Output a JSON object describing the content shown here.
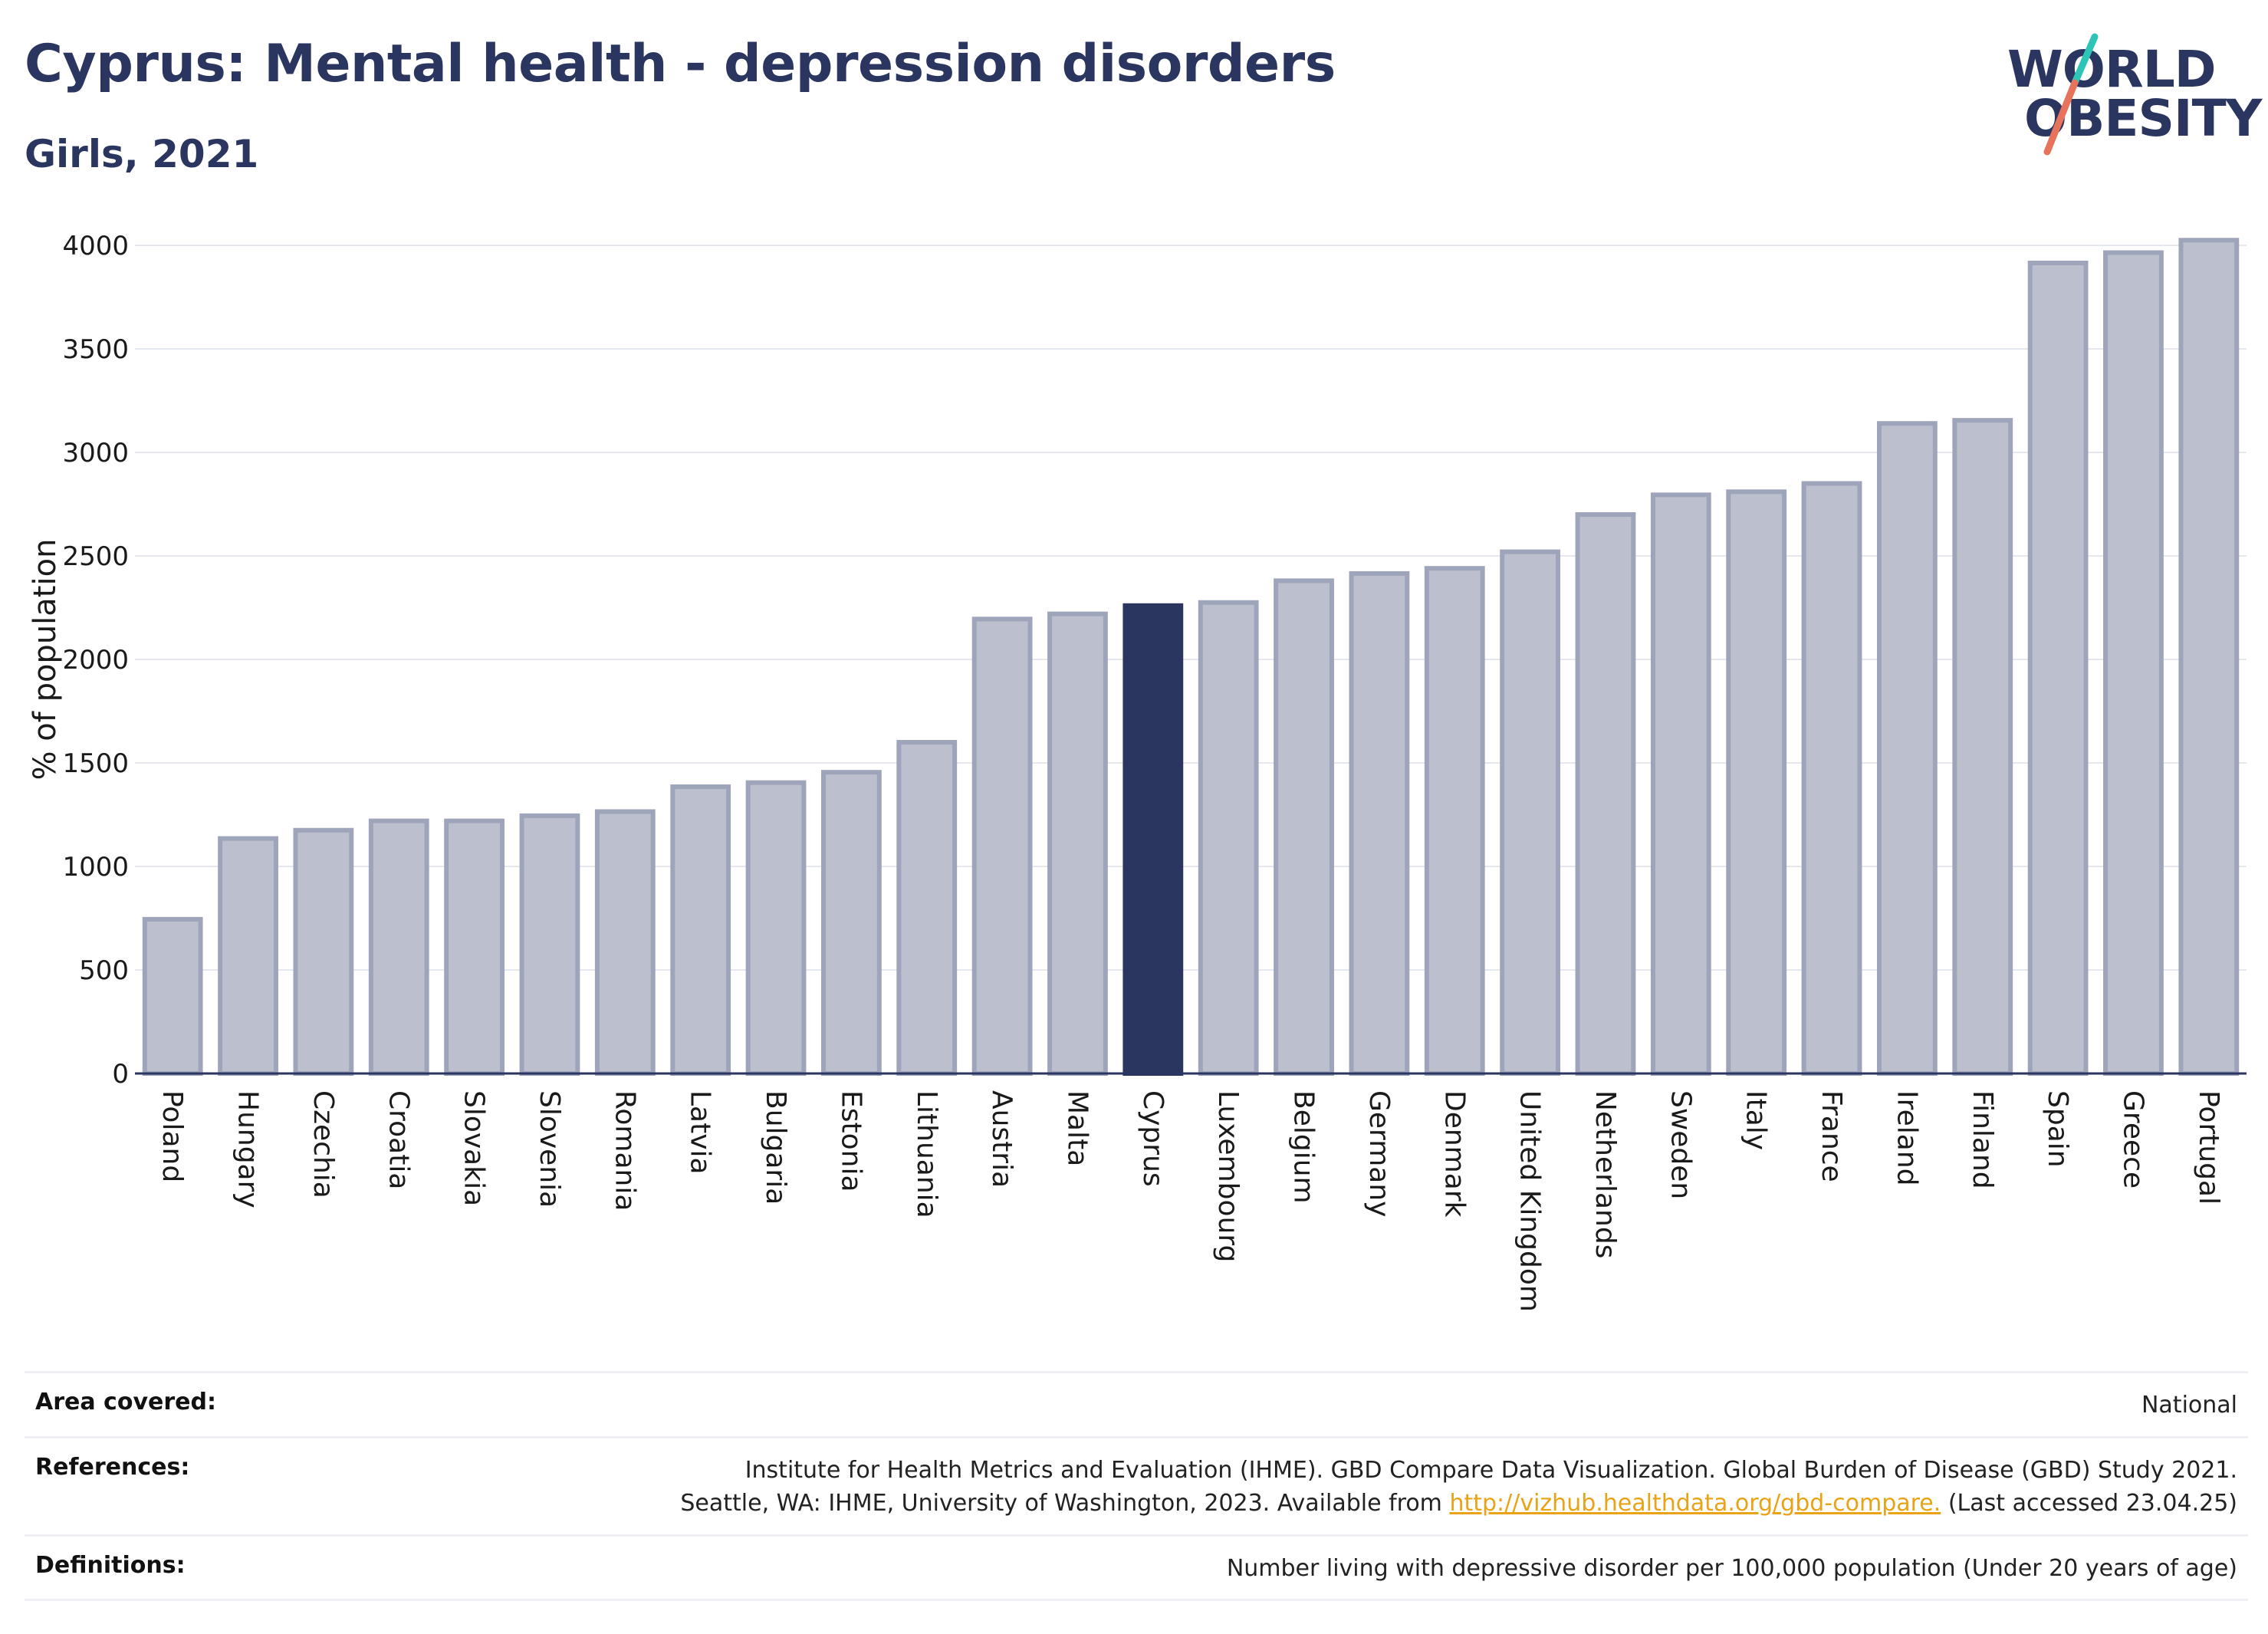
{
  "header": {
    "title": "Cyprus: Mental health - depression disorders",
    "subtitle": "Girls, 2021"
  },
  "logo": {
    "line1": "WORLD",
    "line2": "OBESITY",
    "slash_colors": [
      "#2ec4b6",
      "#e8735c"
    ]
  },
  "chart_data": {
    "type": "bar",
    "ylabel": "% of population",
    "ylim": [
      0,
      4000
    ],
    "yticks": [
      0,
      500,
      1000,
      1500,
      2000,
      2500,
      3000,
      3500,
      4000
    ],
    "grid": true,
    "highlight": "Cyprus",
    "colors": {
      "bar": "#bcc0ce",
      "bar_edge": "#9ea4ba",
      "highlight": "#2b3660",
      "grid": "#e6e8ef",
      "axis": "#2b3660"
    },
    "categories": [
      "Poland",
      "Hungary",
      "Czechia",
      "Croatia",
      "Slovakia",
      "Slovenia",
      "Romania",
      "Latvia",
      "Bulgaria",
      "Estonia",
      "Lithuania",
      "Austria",
      "Malta",
      "Cyprus",
      "Luxembourg",
      "Belgium",
      "Germany",
      "Denmark",
      "United Kingdom",
      "Netherlands",
      "Sweden",
      "Italy",
      "France",
      "Ireland",
      "Finland",
      "Spain",
      "Greece",
      "Portugal"
    ],
    "values": [
      745,
      1135,
      1175,
      1220,
      1220,
      1245,
      1265,
      1385,
      1405,
      1455,
      1600,
      2195,
      2220,
      2260,
      2275,
      2380,
      2415,
      2440,
      2520,
      2700,
      2795,
      2810,
      2850,
      3140,
      3155,
      3915,
      3965,
      4025
    ]
  },
  "footer": {
    "area_label": "Area covered:",
    "area_value": "National",
    "references_label": "References:",
    "references_line1": "Institute for Health Metrics and Evaluation (IHME). GBD Compare Data Visualization. Global Burden of Disease (GBD) Study 2021.",
    "references_line2_pre": "Seattle, WA: IHME, University of Washington, 2023. Available from ",
    "references_link": "http://vizhub.healthdata.org/gbd-compare.",
    "references_line2_post": " (Last accessed 23.04.25)",
    "definitions_label": "Definitions:",
    "definitions_value": "Number living with depressive disorder per 100,000 population (Under 20 years of age)"
  }
}
